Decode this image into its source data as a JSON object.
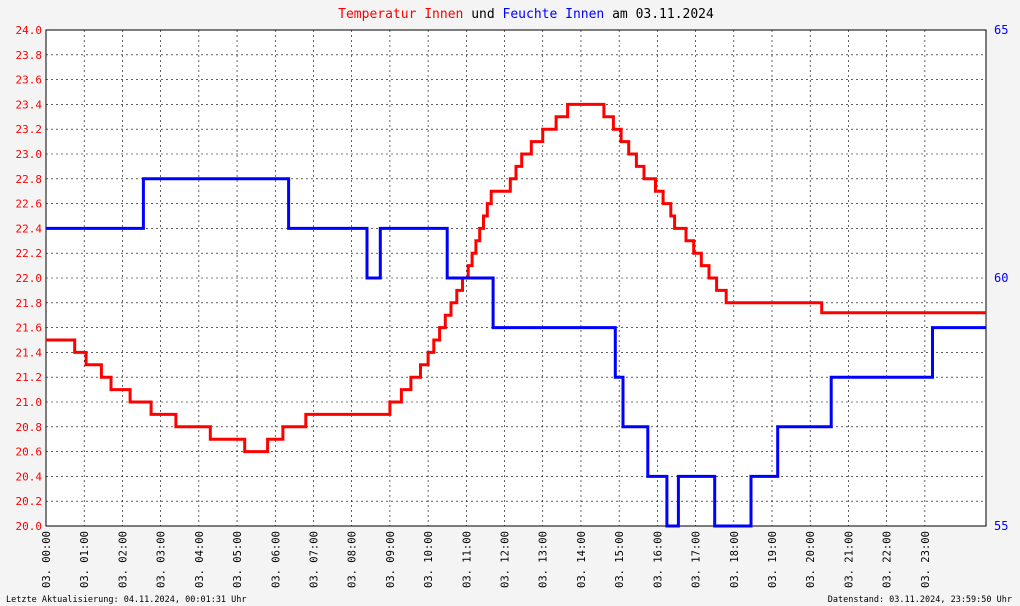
{
  "title": {
    "parts": [
      {
        "text": "Temperatur Innen",
        "color": "#ff0000"
      },
      {
        "text": " und ",
        "color": "#000000"
      },
      {
        "text": "Feuchte Innen",
        "color": "#0000ff"
      },
      {
        "text": " am 03.11.2024",
        "color": "#000000"
      }
    ]
  },
  "footer": {
    "left": "Letzte Aktualisierung: 04.11.2024, 00:01:31 Uhr",
    "right": "Datenstand: 03.11.2024, 23:59:50 Uhr"
  },
  "chart_data": {
    "type": "line",
    "grid": true,
    "x_unit": "hours",
    "xlim": [
      0,
      24.6
    ],
    "x_tick_labels": [
      "03. 00:00",
      "03. 01:00",
      "03. 02:00",
      "03. 03:00",
      "03. 04:00",
      "03. 05:00",
      "03. 06:00",
      "03. 07:00",
      "03. 08:00",
      "03. 09:00",
      "03. 10:00",
      "03. 11:00",
      "03. 12:00",
      "03. 13:00",
      "03. 14:00",
      "03. 15:00",
      "03. 16:00",
      "03. 17:00",
      "03. 18:00",
      "03. 19:00",
      "03. 20:00",
      "03. 21:00",
      "03. 22:00",
      "03. 23:00"
    ],
    "y_left": {
      "lim": [
        20.0,
        24.0
      ],
      "ticks": [
        "20.0",
        "20.2",
        "20.4",
        "20.6",
        "20.8",
        "21.0",
        "21.2",
        "21.4",
        "21.6",
        "21.8",
        "22.0",
        "22.2",
        "22.4",
        "22.6",
        "22.8",
        "23.0",
        "23.2",
        "23.4",
        "23.6",
        "23.8",
        "24.0"
      ],
      "color": "#ff0000"
    },
    "y_right": {
      "lim": [
        55,
        65
      ],
      "ticks": [
        "55",
        "60",
        "65"
      ],
      "color": "#0000ff"
    },
    "series": [
      {
        "name": "Temperatur Innen",
        "axis": "left",
        "color": "#ff0000",
        "points": [
          [
            0,
            21.5
          ],
          [
            0.75,
            21.5
          ],
          [
            0.75,
            21.4
          ],
          [
            1.05,
            21.4
          ],
          [
            1.05,
            21.3
          ],
          [
            1.45,
            21.3
          ],
          [
            1.45,
            21.2
          ],
          [
            1.7,
            21.2
          ],
          [
            1.7,
            21.1
          ],
          [
            2.2,
            21.1
          ],
          [
            2.2,
            21.0
          ],
          [
            2.55,
            21.0
          ],
          [
            2.55,
            21.0
          ],
          [
            2.75,
            21.0
          ],
          [
            2.75,
            20.9
          ],
          [
            3.4,
            20.9
          ],
          [
            3.4,
            20.8
          ],
          [
            4.3,
            20.8
          ],
          [
            4.3,
            20.7
          ],
          [
            5.2,
            20.7
          ],
          [
            5.2,
            20.6
          ],
          [
            5.8,
            20.6
          ],
          [
            5.8,
            20.7
          ],
          [
            6.2,
            20.7
          ],
          [
            6.2,
            20.8
          ],
          [
            6.8,
            20.8
          ],
          [
            6.8,
            20.9
          ],
          [
            9.0,
            20.9
          ],
          [
            9.0,
            21.0
          ],
          [
            9.3,
            21.0
          ],
          [
            9.3,
            21.1
          ],
          [
            9.55,
            21.1
          ],
          [
            9.55,
            21.2
          ],
          [
            9.8,
            21.2
          ],
          [
            9.8,
            21.3
          ],
          [
            10.0,
            21.3
          ],
          [
            10.0,
            21.4
          ],
          [
            10.15,
            21.4
          ],
          [
            10.15,
            21.5
          ],
          [
            10.3,
            21.5
          ],
          [
            10.3,
            21.6
          ],
          [
            10.45,
            21.6
          ],
          [
            10.45,
            21.7
          ],
          [
            10.6,
            21.7
          ],
          [
            10.6,
            21.8
          ],
          [
            10.75,
            21.8
          ],
          [
            10.75,
            21.9
          ],
          [
            10.9,
            21.9
          ],
          [
            10.9,
            22.0
          ],
          [
            11.05,
            22.0
          ],
          [
            11.05,
            22.1
          ],
          [
            11.15,
            22.1
          ],
          [
            11.15,
            22.2
          ],
          [
            11.25,
            22.2
          ],
          [
            11.25,
            22.3
          ],
          [
            11.35,
            22.3
          ],
          [
            11.35,
            22.4
          ],
          [
            11.45,
            22.4
          ],
          [
            11.45,
            22.5
          ],
          [
            11.55,
            22.5
          ],
          [
            11.55,
            22.6
          ],
          [
            11.65,
            22.6
          ],
          [
            11.65,
            22.7
          ],
          [
            11.9,
            22.7
          ],
          [
            11.9,
            22.7
          ],
          [
            12.15,
            22.7
          ],
          [
            12.15,
            22.8
          ],
          [
            12.3,
            22.8
          ],
          [
            12.3,
            22.9
          ],
          [
            12.45,
            22.9
          ],
          [
            12.45,
            23.0
          ],
          [
            12.7,
            23.0
          ],
          [
            12.7,
            23.1
          ],
          [
            13.0,
            23.1
          ],
          [
            13.0,
            23.2
          ],
          [
            13.35,
            23.2
          ],
          [
            13.35,
            23.3
          ],
          [
            13.65,
            23.3
          ],
          [
            13.65,
            23.4
          ],
          [
            14.6,
            23.4
          ],
          [
            14.6,
            23.3
          ],
          [
            14.85,
            23.3
          ],
          [
            14.85,
            23.2
          ],
          [
            15.05,
            23.2
          ],
          [
            15.05,
            23.1
          ],
          [
            15.25,
            23.1
          ],
          [
            15.25,
            23.0
          ],
          [
            15.45,
            23.0
          ],
          [
            15.45,
            22.9
          ],
          [
            15.65,
            22.9
          ],
          [
            15.65,
            22.8
          ],
          [
            15.95,
            22.8
          ],
          [
            15.95,
            22.7
          ],
          [
            16.15,
            22.7
          ],
          [
            16.15,
            22.6
          ],
          [
            16.35,
            22.6
          ],
          [
            16.35,
            22.5
          ],
          [
            16.45,
            22.5
          ],
          [
            16.45,
            22.4
          ],
          [
            16.75,
            22.4
          ],
          [
            16.75,
            22.3
          ],
          [
            16.95,
            22.3
          ],
          [
            16.95,
            22.2
          ],
          [
            17.15,
            22.2
          ],
          [
            17.15,
            22.1
          ],
          [
            17.35,
            22.1
          ],
          [
            17.35,
            22.0
          ],
          [
            17.55,
            22.0
          ],
          [
            17.55,
            21.9
          ],
          [
            17.8,
            21.9
          ],
          [
            17.8,
            21.8
          ],
          [
            18.5,
            21.8
          ],
          [
            18.5,
            21.8
          ],
          [
            20.3,
            21.8
          ],
          [
            20.3,
            21.72
          ],
          [
            24.6,
            21.72
          ]
        ]
      },
      {
        "name": "Feuchte Innen",
        "axis": "right",
        "color": "#0000ff",
        "points": [
          [
            0,
            61.0
          ],
          [
            2.55,
            61.0
          ],
          [
            2.55,
            62.0
          ],
          [
            6.35,
            62.0
          ],
          [
            6.35,
            61.0
          ],
          [
            8.4,
            61.0
          ],
          [
            8.4,
            60.0
          ],
          [
            8.75,
            60.0
          ],
          [
            8.75,
            61.0
          ],
          [
            10.5,
            61.0
          ],
          [
            10.5,
            60.0
          ],
          [
            11.7,
            60.0
          ],
          [
            11.7,
            59.0
          ],
          [
            14.9,
            59.0
          ],
          [
            14.9,
            58.0
          ],
          [
            15.1,
            58.0
          ],
          [
            15.1,
            57.0
          ],
          [
            15.75,
            57.0
          ],
          [
            15.75,
            56.0
          ],
          [
            16.25,
            56.0
          ],
          [
            16.25,
            55.0
          ],
          [
            16.55,
            55.0
          ],
          [
            16.55,
            56.0
          ],
          [
            17.5,
            56.0
          ],
          [
            17.5,
            55.0
          ],
          [
            18.45,
            55.0
          ],
          [
            18.45,
            56.0
          ],
          [
            19.15,
            56.0
          ],
          [
            19.15,
            57.0
          ],
          [
            20.55,
            57.0
          ],
          [
            20.55,
            58.0
          ],
          [
            23.2,
            58.0
          ],
          [
            23.2,
            59.0
          ],
          [
            24.6,
            59.0
          ]
        ]
      }
    ]
  }
}
